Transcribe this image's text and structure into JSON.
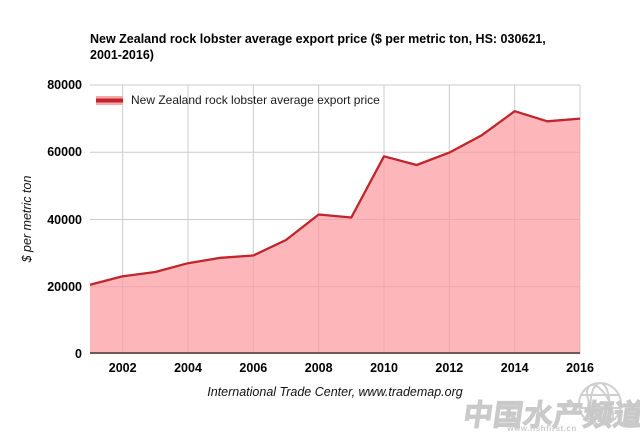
{
  "title_lines": [
    "New Zealand rock lobster average export price ($ per metric ton, HS: 030621,",
    "2001-2016)"
  ],
  "legend": {
    "label": "New Zealand rock lobster average export price"
  },
  "y_axis_title": "$ per metric ton",
  "footer": "International Trade Center, www.trademap.org",
  "watermark": {
    "name": "中国水产频道",
    "url": "www.fishfirst.cn",
    "globe_icon": "wireframe-globe"
  },
  "colors": {
    "line": "#c2242c",
    "fill": "#fc9a9e",
    "grid": "#cccccc",
    "axis": "#6e5a52",
    "text": "#000000",
    "watermark": "#c9c9c9"
  },
  "chart_data": {
    "type": "area",
    "title": "New Zealand rock lobster average export price ($ per metric ton, HS: 030621, 2001-2016)",
    "x": [
      2001,
      2002,
      2003,
      2004,
      2005,
      2006,
      2007,
      2008,
      2009,
      2010,
      2011,
      2012,
      2013,
      2014,
      2015,
      2016
    ],
    "series": [
      {
        "name": "New Zealand rock lobster average export price",
        "values": [
          20600,
          23100,
          24400,
          27000,
          28600,
          29300,
          33900,
          41500,
          40600,
          58800,
          56200,
          59900,
          65100,
          72200,
          69200,
          70000
        ]
      }
    ],
    "xlabel": "",
    "ylabel": "$ per metric ton",
    "ylim": [
      0,
      80000
    ],
    "yticks": [
      0,
      20000,
      40000,
      60000,
      80000
    ],
    "xticks": [
      2002,
      2004,
      2006,
      2008,
      2010,
      2012,
      2014,
      2016
    ],
    "grid": true,
    "legend_position": "top-left-inside",
    "source": "International Trade Center, www.trademap.org"
  }
}
